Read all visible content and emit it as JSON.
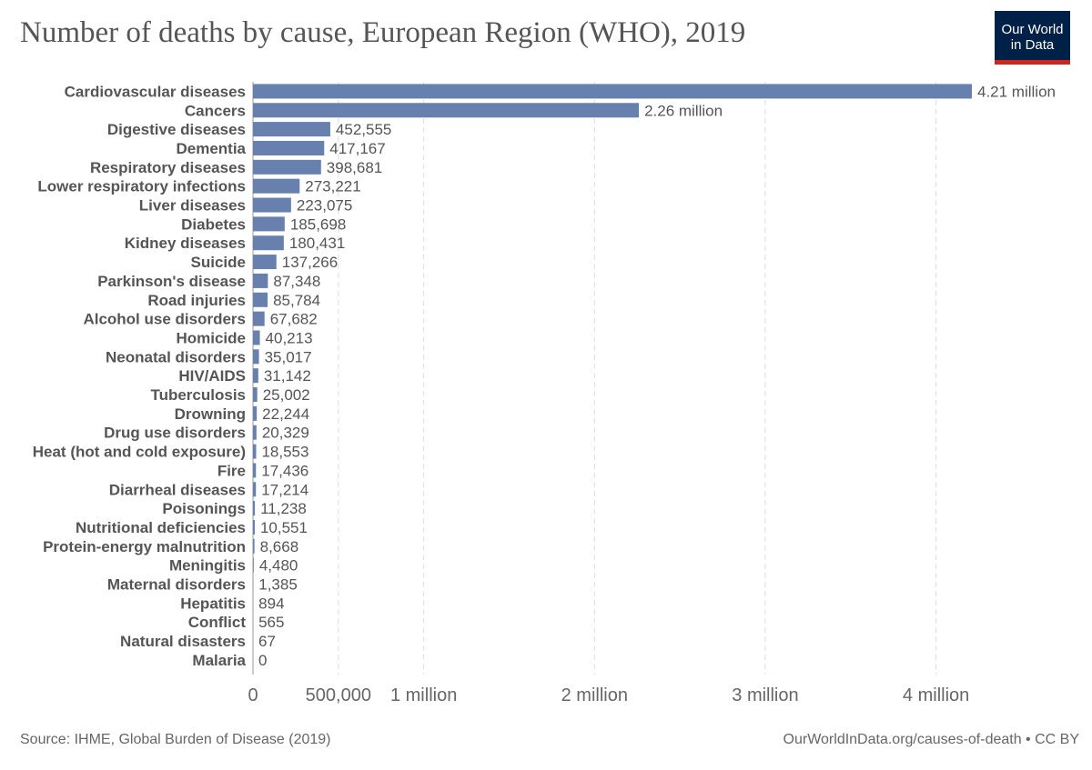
{
  "title": "Number of deaths by cause, European Region (WHO), 2019",
  "logo": {
    "line1": "Our World",
    "line2": "in Data"
  },
  "footer": {
    "source": "Source: IHME, Global Burden of Disease (2019)",
    "url": "OurWorldInData.org/causes-of-death • CC BY"
  },
  "colors": {
    "bar": "#6780ad",
    "logo_bg": "#002147",
    "logo_accent": "#ce261e"
  },
  "chart_data": {
    "type": "bar",
    "orientation": "horizontal",
    "title": "Number of deaths by cause, European Region (WHO), 2019",
    "xlim": [
      0,
      4210000
    ],
    "grid": true,
    "x_ticks": [
      {
        "value": 0,
        "label": "0"
      },
      {
        "value": 500000,
        "label": "500,000"
      },
      {
        "value": 1000000,
        "label": "1 million"
      },
      {
        "value": 2000000,
        "label": "2 million"
      },
      {
        "value": 3000000,
        "label": "3 million"
      },
      {
        "value": 4000000,
        "label": "4 million"
      }
    ],
    "bars": [
      {
        "category": "Cardiovascular diseases",
        "value": 4210000,
        "label": "4.21 million"
      },
      {
        "category": "Cancers",
        "value": 2260000,
        "label": "2.26 million"
      },
      {
        "category": "Digestive diseases",
        "value": 452555,
        "label": "452,555"
      },
      {
        "category": "Dementia",
        "value": 417167,
        "label": "417,167"
      },
      {
        "category": "Respiratory diseases",
        "value": 398681,
        "label": "398,681"
      },
      {
        "category": "Lower respiratory infections",
        "value": 273221,
        "label": "273,221"
      },
      {
        "category": "Liver diseases",
        "value": 223075,
        "label": "223,075"
      },
      {
        "category": "Diabetes",
        "value": 185698,
        "label": "185,698"
      },
      {
        "category": "Kidney diseases",
        "value": 180431,
        "label": "180,431"
      },
      {
        "category": "Suicide",
        "value": 137266,
        "label": "137,266"
      },
      {
        "category": "Parkinson's disease",
        "value": 87348,
        "label": "87,348"
      },
      {
        "category": "Road injuries",
        "value": 85784,
        "label": "85,784"
      },
      {
        "category": "Alcohol use disorders",
        "value": 67682,
        "label": "67,682"
      },
      {
        "category": "Homicide",
        "value": 40213,
        "label": "40,213"
      },
      {
        "category": "Neonatal disorders",
        "value": 35017,
        "label": "35,017"
      },
      {
        "category": "HIV/AIDS",
        "value": 31142,
        "label": "31,142"
      },
      {
        "category": "Tuberculosis",
        "value": 25002,
        "label": "25,002"
      },
      {
        "category": "Drowning",
        "value": 22244,
        "label": "22,244"
      },
      {
        "category": "Drug use disorders",
        "value": 20329,
        "label": "20,329"
      },
      {
        "category": "Heat (hot and cold exposure)",
        "value": 18553,
        "label": "18,553"
      },
      {
        "category": "Fire",
        "value": 17436,
        "label": "17,436"
      },
      {
        "category": "Diarrheal diseases",
        "value": 17214,
        "label": "17,214"
      },
      {
        "category": "Poisonings",
        "value": 11238,
        "label": "11,238"
      },
      {
        "category": "Nutritional deficiencies",
        "value": 10551,
        "label": "10,551"
      },
      {
        "category": "Protein-energy malnutrition",
        "value": 8668,
        "label": "8,668"
      },
      {
        "category": "Meningitis",
        "value": 4480,
        "label": "4,480"
      },
      {
        "category": "Maternal disorders",
        "value": 1385,
        "label": "1,385"
      },
      {
        "category": "Hepatitis",
        "value": 894,
        "label": "894"
      },
      {
        "category": "Conflict",
        "value": 565,
        "label": "565"
      },
      {
        "category": "Natural disasters",
        "value": 67,
        "label": "67"
      },
      {
        "category": "Malaria",
        "value": 0,
        "label": "0"
      }
    ]
  }
}
